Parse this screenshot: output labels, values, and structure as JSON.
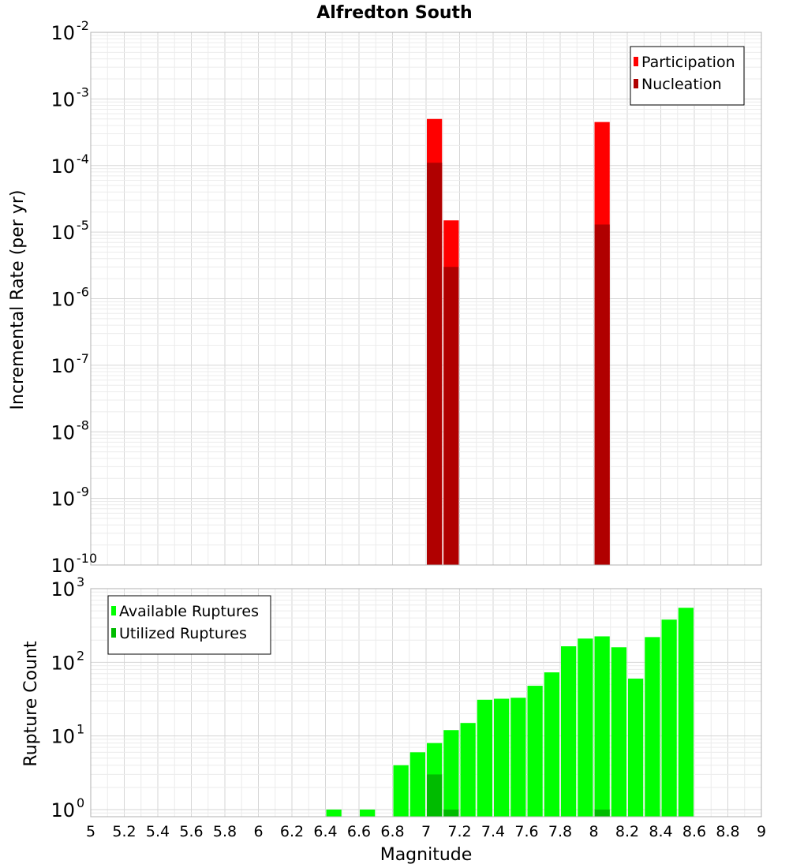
{
  "title": "Alfredton South",
  "chart_data": [
    {
      "type": "bar",
      "ylabel": "Incremental Rate (per yr)",
      "xlim": [
        5,
        9
      ],
      "ylim": [
        1e-10,
        0.01
      ],
      "yscale": "log",
      "grid": true,
      "legend_position": "top-right",
      "bar_width": 0.1,
      "series": [
        {
          "name": "Participation",
          "color": "#ff0000",
          "x": [
            7.05,
            7.15,
            8.05
          ],
          "values": [
            0.0005,
            1.5e-05,
            0.00045
          ]
        },
        {
          "name": "Nucleation",
          "color": "#b00000",
          "x": [
            7.05,
            7.15,
            8.05
          ],
          "values": [
            0.00011,
            3e-06,
            1.3e-05
          ]
        }
      ]
    },
    {
      "type": "bar",
      "xlabel": "Magnitude",
      "ylabel": "Rupture Count",
      "xlim": [
        5,
        9
      ],
      "ylim": [
        0.8,
        1000
      ],
      "yscale": "log",
      "grid": true,
      "legend_position": "top-left",
      "bar_width": 0.1,
      "xticks": [
        "5",
        "5.2",
        "5.4",
        "5.6",
        "5.8",
        "6",
        "6.2",
        "6.4",
        "6.6",
        "6.8",
        "7",
        "7.2",
        "7.4",
        "7.6",
        "7.8",
        "8",
        "8.2",
        "8.4",
        "8.6",
        "8.8",
        "9"
      ],
      "series": [
        {
          "name": "Available Ruptures",
          "color": "#00ff00",
          "x": [
            6.45,
            6.65,
            6.85,
            6.95,
            7.05,
            7.15,
            7.25,
            7.35,
            7.45,
            7.55,
            7.65,
            7.75,
            7.85,
            7.95,
            8.05,
            8.15,
            8.25,
            8.35,
            8.45,
            8.55
          ],
          "values": [
            1,
            1,
            4,
            6,
            8,
            12,
            15,
            31,
            32,
            33,
            48,
            73,
            165,
            210,
            225,
            160,
            60,
            220,
            380,
            550
          ]
        },
        {
          "name": "Utilized Ruptures",
          "color": "#00bb00",
          "x": [
            7.05,
            7.15,
            8.05
          ],
          "values": [
            3,
            1,
            1
          ]
        }
      ]
    }
  ],
  "axis_exponents": {
    "top": [
      "-2",
      "-3",
      "-4",
      "-5",
      "-6",
      "-7",
      "-8",
      "-9",
      "-10"
    ],
    "bottom": [
      "3",
      "2",
      "1",
      "0"
    ]
  }
}
